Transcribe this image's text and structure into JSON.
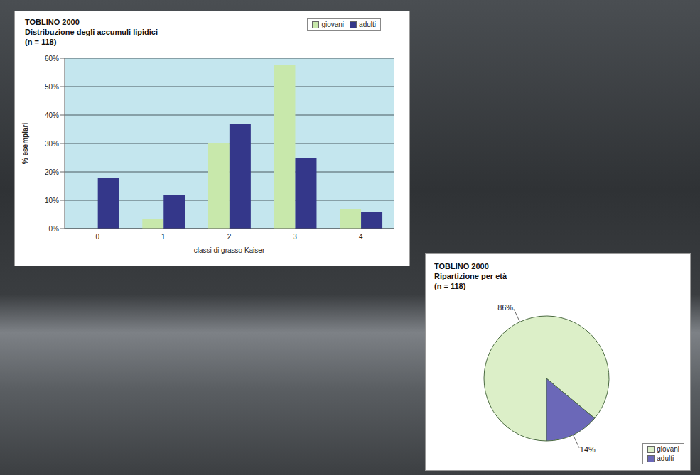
{
  "chart_data": [
    {
      "type": "bar",
      "title": "TOBLINO 2000",
      "subtitle": "Distribuzione degli accumuli lipidici",
      "annotations": [
        "(n = 118)"
      ],
      "x_label": "classi di grasso Kaiser",
      "y_label": "% esemplari",
      "categories": [
        "0",
        "1",
        "2",
        "3",
        "4"
      ],
      "series": [
        {
          "name": "giovani",
          "color": "#c8e8ab",
          "values": [
            0,
            3.5,
            30,
            57.5,
            7
          ]
        },
        {
          "name": "adulti",
          "color": "#34378a",
          "values": [
            18,
            12,
            37,
            25,
            6
          ]
        }
      ],
      "ylim": [
        0,
        60
      ],
      "yticks": [
        {
          "value": 0,
          "label": "0%"
        },
        {
          "value": 10,
          "label": "10%"
        },
        {
          "value": 20,
          "label": "20%"
        },
        {
          "value": 30,
          "label": "30%"
        },
        {
          "value": 40,
          "label": "40%"
        },
        {
          "value": 50,
          "label": "50%"
        },
        {
          "value": 60,
          "label": "60%"
        }
      ],
      "grid": true,
      "legend": "top-right"
    },
    {
      "type": "pie",
      "title": "TOBLINO 2000",
      "subtitle": "Ripartizione per età",
      "annotations": [
        "(n = 118)"
      ],
      "categories": [
        "giovani",
        "adulti"
      ],
      "values": [
        86,
        14
      ],
      "value_labels": [
        "86%",
        "14%"
      ],
      "colors": [
        "#dcefc8",
        "#6b68b8"
      ],
      "data_labels": true,
      "legend": "bottom-right"
    }
  ]
}
